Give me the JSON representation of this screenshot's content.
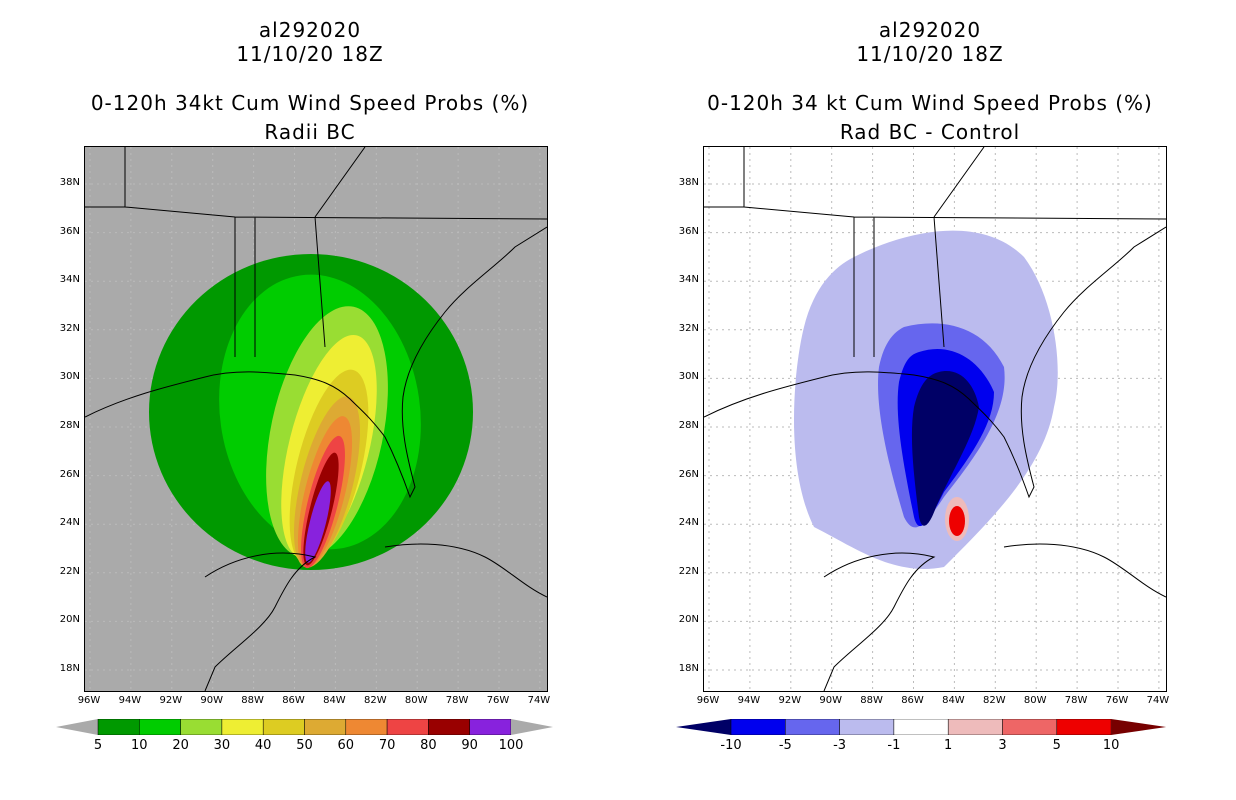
{
  "left_panel": {
    "storm_id": "al292020",
    "date": "11/10/20 18Z",
    "title_line1": "0-120h 34kt Cum Wind Speed Probs (%)",
    "title_line2": "Radii BC",
    "colorbar_labels": [
      "5",
      "10",
      "20",
      "30",
      "40",
      "50",
      "60",
      "70",
      "80",
      "90",
      "100"
    ],
    "colors": [
      "#009900",
      "#00cc00",
      "#99dd33",
      "#eeee33",
      "#ddcc22",
      "#ddaa33",
      "#ee8833",
      "#ee4444",
      "#990000",
      "#8822dd"
    ]
  },
  "right_panel": {
    "storm_id": "al292020",
    "date": "11/10/20 18Z",
    "title_line1": "0-120h 34 kt Cum Wind Speed Probs (%)",
    "title_line2": "Rad BC - Control",
    "colorbar_labels": [
      "-10",
      "-5",
      "-3",
      "-1",
      "1",
      "3",
      "5",
      "10"
    ],
    "colors": [
      "#000066",
      "#0000ee",
      "#6666ee",
      "#bbbbee",
      "#ffffff",
      "#eebbbb",
      "#ee6666",
      "#ee0000",
      "#770000"
    ]
  },
  "axes": {
    "lat_labels": [
      "38N",
      "36N",
      "34N",
      "32N",
      "30N",
      "28N",
      "26N",
      "24N",
      "22N",
      "20N",
      "18N"
    ],
    "lon_labels": [
      "96W",
      "94W",
      "92W",
      "90W",
      "88W",
      "86W",
      "84W",
      "82W",
      "80W",
      "78W",
      "76W",
      "74W"
    ]
  },
  "colors": {
    "land_gray": "#aaaaaa",
    "grid": "#bbbbbb"
  }
}
